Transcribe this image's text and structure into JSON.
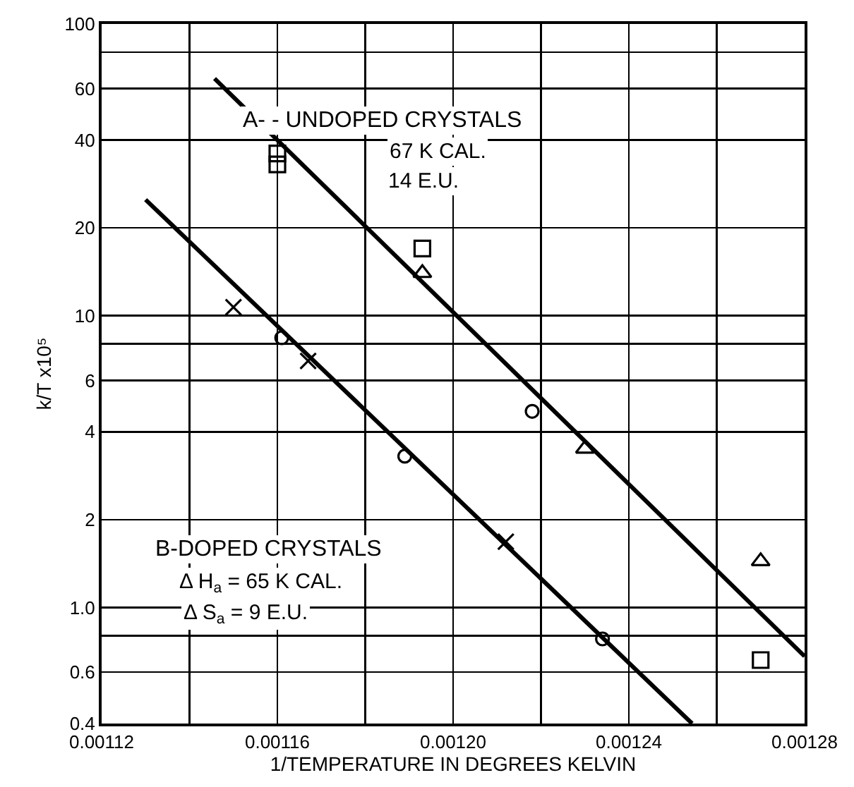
{
  "chart_data": {
    "type": "scatter",
    "xlabel": "1/TEMPERATURE IN DEGREES KELVIN",
    "ylabel": "k/T x10⁵",
    "log": "y",
    "xlim": [
      0.00112,
      0.00128
    ],
    "xticks": [
      {
        "value": 0.00112,
        "label": "0.00112"
      },
      {
        "value": 0.00114,
        "label": null
      },
      {
        "value": 0.00116,
        "label": "0.00116"
      },
      {
        "value": 0.00118,
        "label": null
      },
      {
        "value": 0.0012,
        "label": "0.00120"
      },
      {
        "value": 0.00122,
        "label": null
      },
      {
        "value": 0.00124,
        "label": "0.00124"
      },
      {
        "value": 0.00126,
        "label": null
      },
      {
        "value": 0.00128,
        "label": "0.00128"
      }
    ],
    "ylim": [
      0.4,
      100
    ],
    "yticks": [
      0.4,
      0.6,
      {
        "value": 0.8,
        "label": null
      },
      {
        "value": 1,
        "label": "1.0"
      },
      2,
      4,
      6,
      {
        "value": 8,
        "label": null
      },
      10,
      20,
      40,
      60,
      {
        "value": 80,
        "label": null
      },
      100
    ],
    "grid": true,
    "series": [
      {
        "type": "line",
        "color": "#000000",
        "marker": "none",
        "line_style": "solid",
        "x": [
          0.0011457,
          0.00128
        ],
        "values": [
          65,
          0.68
        ]
      },
      {
        "type": "line",
        "color": "#000000",
        "marker": "none",
        "line_style": "solid",
        "x": [
          0.00113,
          0.0012544
        ],
        "values": [
          25,
          0.4
        ]
      },
      {
        "color": "#000000",
        "marker": "square",
        "x": [
          0.00116,
          0.00116,
          0.001193,
          0.00127
        ],
        "values": [
          36,
          33,
          17,
          0.66
        ]
      },
      {
        "color": "#000000",
        "marker": "triangle",
        "x": [
          0.001193,
          0.00123,
          0.00127
        ],
        "values": [
          14,
          3.5,
          1.44
        ]
      },
      {
        "color": "#000000",
        "marker": "circle",
        "x": [
          0.001218
        ],
        "values": [
          4.7
        ]
      },
      {
        "color": "#000000",
        "marker": "circle",
        "x": [
          0.001161,
          0.001189,
          0.001234
        ],
        "values": [
          8.4,
          3.3,
          0.78
        ]
      },
      {
        "color": "#000000",
        "marker": "cross",
        "x": [
          0.00115,
          0.001167,
          0.001212
        ],
        "values": [
          10.7,
          7,
          1.68
        ]
      }
    ],
    "annotations": [
      "A- - UNDOPED CRYSTALS",
      "67 K CAL.",
      "14 E.U.",
      "B-DOPED CRYSTALS",
      "Δ H$_{a}$ = 65 K CAL.",
      "Δ S$_{a}$ = 9 E.U."
    ]
  }
}
